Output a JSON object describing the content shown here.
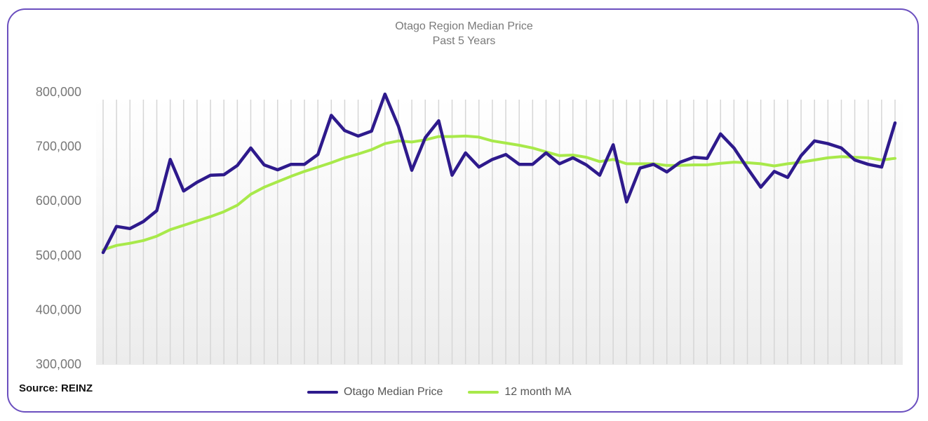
{
  "chart_data": {
    "type": "line",
    "title": "Otago Region Median Price",
    "subtitle": "Past 5 Years",
    "xlabel": "",
    "ylabel": "",
    "ylim": [
      300000,
      800000
    ],
    "yticks": [
      "300,000",
      "400,000",
      "500,000",
      "600,000",
      "700,000",
      "800,000"
    ],
    "ytick_values": [
      300000,
      400000,
      500000,
      600000,
      700000,
      800000
    ],
    "grid": "vertical",
    "legend_position": "bottom",
    "series": [
      {
        "name": "Otago Median Price",
        "color": "#2e1a8c",
        "values": [
          505000,
          553000,
          549000,
          562000,
          582000,
          676000,
          618000,
          634000,
          647000,
          648000,
          665000,
          697000,
          666000,
          657000,
          667000,
          667000,
          685000,
          757000,
          729000,
          719000,
          728000,
          796000,
          737000,
          656000,
          716000,
          747000,
          647000,
          688000,
          662000,
          676000,
          685000,
          667000,
          667000,
          688000,
          668000,
          679000,
          666000,
          647000,
          703000,
          598000,
          660000,
          667000,
          653000,
          671000,
          680000,
          678000,
          723000,
          697000,
          660000,
          625000,
          654000,
          643000,
          683000,
          710000,
          705000,
          697000,
          675000,
          667000,
          662000,
          743000
        ]
      },
      {
        "name": "12 month MA",
        "color": "#a8e94a",
        "values": [
          510000,
          518000,
          522000,
          527000,
          535000,
          547000,
          555000,
          563000,
          571000,
          580000,
          592000,
          612000,
          625000,
          635000,
          645000,
          654000,
          662000,
          670000,
          679000,
          686000,
          694000,
          705000,
          710000,
          708000,
          712000,
          718000,
          718000,
          719000,
          717000,
          710000,
          706000,
          702000,
          697000,
          690000,
          683000,
          684000,
          680000,
          672000,
          676000,
          668000,
          668000,
          668000,
          665000,
          665000,
          666000,
          666000,
          669000,
          671000,
          670000,
          668000,
          664000,
          668000,
          671000,
          675000,
          679000,
          681000,
          680000,
          679000,
          675000,
          678000
        ]
      }
    ]
  },
  "source": "Source: REINZ"
}
